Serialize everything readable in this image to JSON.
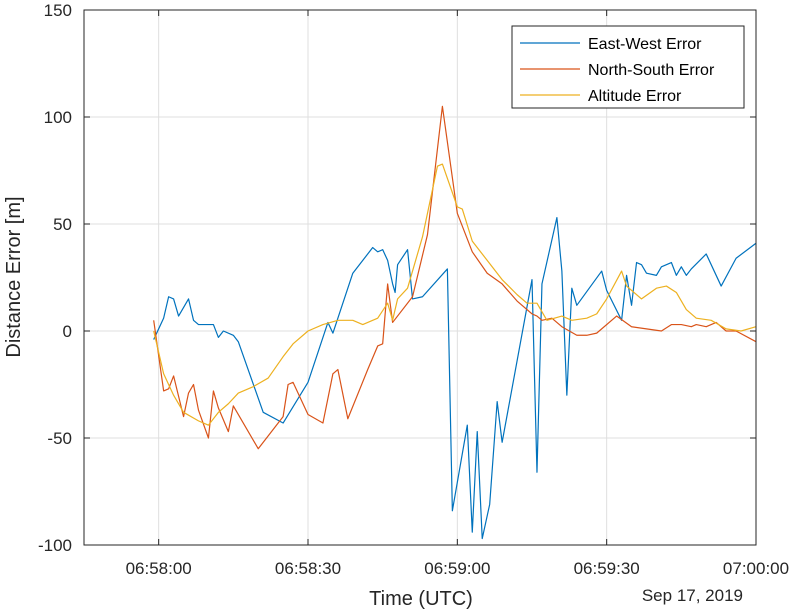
{
  "chart_data": {
    "type": "line",
    "xlabel": "Time (UTC)",
    "ylabel": "Distance Error [m]",
    "date_label": "Sep 17, 2019",
    "xlim": [
      "06:57:45",
      "07:00:00"
    ],
    "ylim": [
      -100,
      150
    ],
    "x_ticks": [
      "06:58:00",
      "06:58:30",
      "06:59:00",
      "06:59:30",
      "07:00:00"
    ],
    "y_ticks": [
      -100,
      -50,
      0,
      50,
      100,
      150
    ],
    "grid": true,
    "legend_position": "top-right",
    "colors": {
      "axes": "#262626",
      "grid": "#dfdfdf"
    },
    "series": [
      {
        "name": "East-West Error",
        "color": "#0072BD",
        "points": [
          [
            "06:57:59",
            -4
          ],
          [
            "06:58:01",
            6
          ],
          [
            "06:58:02",
            16
          ],
          [
            "06:58:03",
            15
          ],
          [
            "06:58:04",
            7
          ],
          [
            "06:58:06",
            15
          ],
          [
            "06:58:07",
            5
          ],
          [
            "06:58:08",
            3
          ],
          [
            "06:58:11",
            3
          ],
          [
            "06:58:12",
            -3
          ],
          [
            "06:58:13",
            0
          ],
          [
            "06:58:15",
            -2
          ],
          [
            "06:58:16",
            -5
          ],
          [
            "06:58:21",
            -38
          ],
          [
            "06:58:25",
            -43
          ],
          [
            "06:58:30",
            -24
          ],
          [
            "06:58:34",
            4
          ],
          [
            "06:58:35",
            -1
          ],
          [
            "06:58:39",
            27
          ],
          [
            "06:58:43",
            39
          ],
          [
            "06:58:44",
            37
          ],
          [
            "06:58:45",
            38
          ],
          [
            "06:58:46",
            33
          ],
          [
            "06:58:47",
            22
          ],
          [
            "06:58:47.5",
            18
          ],
          [
            "06:58:48",
            31
          ],
          [
            "06:58:50",
            38
          ],
          [
            "06:58:51",
            15
          ],
          [
            "06:58:53",
            16
          ],
          [
            "06:58:58",
            29
          ],
          [
            "06:58:59",
            -84
          ],
          [
            "06:59:02",
            -44
          ],
          [
            "06:59:03",
            -94
          ],
          [
            "06:59:04",
            -47
          ],
          [
            "06:59:05",
            -97
          ],
          [
            "06:59:06.5",
            -81
          ],
          [
            "06:59:08",
            -33
          ],
          [
            "06:59:09",
            -52
          ],
          [
            "06:59:15",
            24
          ],
          [
            "06:59:16",
            -66
          ],
          [
            "06:59:17",
            22
          ],
          [
            "06:59:20",
            53
          ],
          [
            "06:59:21",
            28
          ],
          [
            "06:59:22",
            -30
          ],
          [
            "06:59:23",
            20
          ],
          [
            "06:59:24",
            12
          ],
          [
            "06:59:29",
            28
          ],
          [
            "06:59:30",
            19
          ],
          [
            "06:59:33",
            5
          ],
          [
            "06:59:34",
            26
          ],
          [
            "06:59:35",
            12
          ],
          [
            "06:59:36",
            32
          ],
          [
            "06:59:37",
            31
          ],
          [
            "06:59:38",
            27
          ],
          [
            "06:59:40",
            26
          ],
          [
            "06:59:41",
            30
          ],
          [
            "06:59:43",
            32
          ],
          [
            "06:59:44",
            26
          ],
          [
            "06:59:45",
            30
          ],
          [
            "06:59:46",
            26
          ],
          [
            "06:59:47",
            29
          ],
          [
            "06:59:50",
            36
          ],
          [
            "06:59:53",
            21
          ],
          [
            "06:59:56",
            34
          ],
          [
            "07:00:00",
            41
          ]
        ]
      },
      {
        "name": "North-South Error",
        "color": "#D95319",
        "points": [
          [
            "06:57:59",
            5
          ],
          [
            "06:58:01",
            -28
          ],
          [
            "06:58:02",
            -27
          ],
          [
            "06:58:03",
            -21
          ],
          [
            "06:58:05",
            -40
          ],
          [
            "06:58:06",
            -29
          ],
          [
            "06:58:07",
            -25
          ],
          [
            "06:58:08",
            -37
          ],
          [
            "06:58:10",
            -50
          ],
          [
            "06:58:11",
            -28
          ],
          [
            "06:58:12",
            -36
          ],
          [
            "06:58:14",
            -47
          ],
          [
            "06:58:15",
            -35
          ],
          [
            "06:58:20",
            -55
          ],
          [
            "06:58:25",
            -40
          ],
          [
            "06:58:26",
            -25
          ],
          [
            "06:58:27",
            -24
          ],
          [
            "06:58:30",
            -39
          ],
          [
            "06:58:33",
            -43
          ],
          [
            "06:58:35",
            -20
          ],
          [
            "06:58:36",
            -18
          ],
          [
            "06:58:38",
            -41
          ],
          [
            "06:58:42",
            -18
          ],
          [
            "06:58:44",
            -7
          ],
          [
            "06:58:45",
            -6
          ],
          [
            "06:58:46",
            22
          ],
          [
            "06:58:47",
            4
          ],
          [
            "06:58:51",
            16
          ],
          [
            "06:58:54",
            45
          ],
          [
            "06:58:57",
            105
          ],
          [
            "06:59:00",
            55
          ],
          [
            "06:59:03",
            37
          ],
          [
            "06:59:06",
            27
          ],
          [
            "06:59:09",
            22
          ],
          [
            "06:59:12",
            14
          ],
          [
            "06:59:15",
            8
          ],
          [
            "06:59:16",
            7
          ],
          [
            "06:59:17",
            5
          ],
          [
            "06:59:19",
            6
          ],
          [
            "06:59:21",
            2
          ],
          [
            "06:59:24",
            -2
          ],
          [
            "06:59:26",
            -2
          ],
          [
            "06:59:28",
            -1
          ],
          [
            "06:59:32",
            7
          ],
          [
            "06:59:35",
            2
          ],
          [
            "06:59:38",
            1
          ],
          [
            "06:59:41",
            0
          ],
          [
            "06:59:43",
            3
          ],
          [
            "06:59:45",
            3
          ],
          [
            "06:59:47",
            2
          ],
          [
            "06:59:48",
            3
          ],
          [
            "06:59:50",
            2
          ],
          [
            "06:59:52",
            4
          ],
          [
            "06:59:54",
            0
          ],
          [
            "06:59:56",
            0
          ],
          [
            "07:00:00",
            -5
          ]
        ]
      },
      {
        "name": "Altitude Error",
        "color": "#EDB120",
        "points": [
          [
            "06:57:59",
            0
          ],
          [
            "06:58:01",
            -20
          ],
          [
            "06:58:03",
            -30
          ],
          [
            "06:58:05",
            -38
          ],
          [
            "06:58:08",
            -42
          ],
          [
            "06:58:10",
            -44
          ],
          [
            "06:58:12",
            -38
          ],
          [
            "06:58:14",
            -34
          ],
          [
            "06:58:16",
            -29
          ],
          [
            "06:58:19",
            -26
          ],
          [
            "06:58:22",
            -22
          ],
          [
            "06:58:25",
            -12
          ],
          [
            "06:58:27",
            -6
          ],
          [
            "06:58:30",
            0
          ],
          [
            "06:58:33",
            3
          ],
          [
            "06:58:36",
            5
          ],
          [
            "06:58:39",
            5
          ],
          [
            "06:58:41",
            3
          ],
          [
            "06:58:44",
            6
          ],
          [
            "06:58:46",
            13
          ],
          [
            "06:58:47",
            5
          ],
          [
            "06:58:48",
            15
          ],
          [
            "06:58:50",
            20
          ],
          [
            "06:58:53",
            44
          ],
          [
            "06:58:56",
            77
          ],
          [
            "06:58:57",
            78
          ],
          [
            "06:59:00",
            58
          ],
          [
            "06:59:01",
            57
          ],
          [
            "06:59:03",
            42
          ],
          [
            "06:59:06",
            33
          ],
          [
            "06:59:09",
            24
          ],
          [
            "06:59:12",
            17
          ],
          [
            "06:59:14",
            13
          ],
          [
            "06:59:16",
            13
          ],
          [
            "06:59:18",
            5
          ],
          [
            "06:59:21",
            7
          ],
          [
            "06:59:23",
            5
          ],
          [
            "06:59:26",
            6
          ],
          [
            "06:59:28",
            8
          ],
          [
            "06:59:30",
            15
          ],
          [
            "06:59:33",
            28
          ],
          [
            "06:59:34",
            21
          ],
          [
            "06:59:37",
            15
          ],
          [
            "06:59:40",
            20
          ],
          [
            "06:59:42",
            21
          ],
          [
            "06:59:44",
            18
          ],
          [
            "06:59:46",
            10
          ],
          [
            "06:59:48",
            6
          ],
          [
            "06:59:51",
            5
          ],
          [
            "06:59:54",
            1
          ],
          [
            "06:59:57",
            0
          ],
          [
            "07:00:00",
            2
          ]
        ]
      }
    ]
  }
}
